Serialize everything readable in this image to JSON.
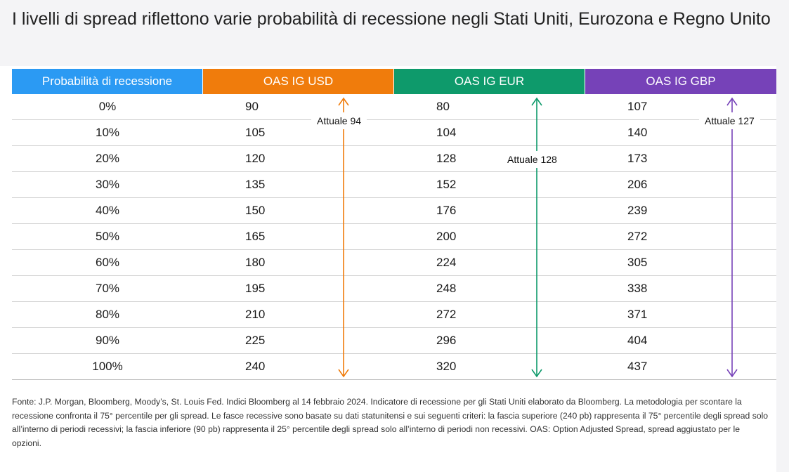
{
  "title": "I livelli di spread riflettono varie probabilità di recessione negli Stati Uniti, Eurozona e Regno Unito",
  "chart_data": {
    "type": "table",
    "headers": [
      "Probabilità di recessione",
      "OAS IG USD",
      "OAS IG EUR",
      "OAS IG GBP"
    ],
    "header_colors": [
      "#2b9af3",
      "#f07c0c",
      "#0e9a6b",
      "#7642b8"
    ],
    "rows": [
      [
        "0%",
        "90",
        "80",
        "107"
      ],
      [
        "10%",
        "105",
        "104",
        "140"
      ],
      [
        "20%",
        "120",
        "128",
        "173"
      ],
      [
        "30%",
        "135",
        "152",
        "206"
      ],
      [
        "40%",
        "150",
        "176",
        "239"
      ],
      [
        "50%",
        "165",
        "200",
        "272"
      ],
      [
        "60%",
        "180",
        "224",
        "305"
      ],
      [
        "70%",
        "195",
        "248",
        "338"
      ],
      [
        "80%",
        "210",
        "272",
        "371"
      ],
      [
        "90%",
        "225",
        "296",
        "404"
      ],
      [
        "100%",
        "240",
        "320",
        "437"
      ]
    ],
    "annotations": [
      {
        "label": "Attuale 94",
        "value": 94,
        "series": "OAS IG USD"
      },
      {
        "label": "Attuale 128",
        "value": 128,
        "series": "OAS IG EUR"
      },
      {
        "label": "Attuale 127",
        "value": 127,
        "series": "OAS IG GBP"
      }
    ]
  },
  "footnote": "Fonte: J.P. Morgan, Bloomberg, Moody’s, St. Louis Fed. Indici Bloomberg al 14 febbraio 2024. Indicatore di recessione per gli Stati Uniti elaborato da Bloomberg. La metodologia per scontare la recessione confronta il 75° percentile per gli spread. Le fasce recessive sono basate su dati statunitensi e sui seguenti criteri: la fascia superiore (240 pb) rappresenta il 75° percentile degli spread solo all’interno di periodi recessivi; la fascia inferiore (90 pb) rappresenta il 25° percentile degli spread solo all’interno di periodi non recessivi. OAS: Option Adjusted Spread, spread aggiustato per le opzioni."
}
